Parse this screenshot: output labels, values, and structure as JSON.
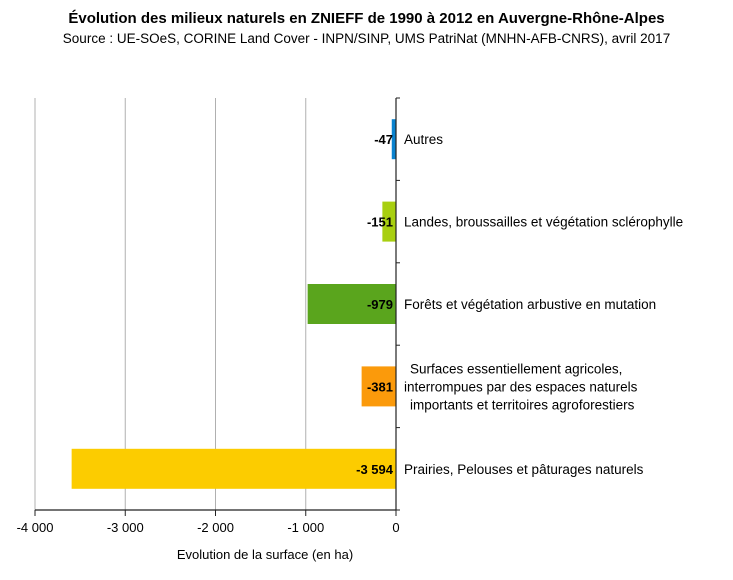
{
  "chart_data": {
    "type": "bar",
    "orientation": "horizontal",
    "title": "Évolution des milieux naturels en ZNIEFF de 1990 à 2012 en Auvergne-Rhône-Alpes",
    "subtitle": "Source : UE-SOeS, CORINE Land Cover - INPN/SINP, UMS PatriNat (MNHN-AFB-CNRS), avril 2017",
    "xlabel": "Evolution de la surface (en ha)",
    "xlim": [
      -4000,
      0
    ],
    "xticks": [
      -4000,
      -3000,
      -2000,
      -1000,
      0
    ],
    "xtick_labels": [
      "-4 000",
      "-3 000",
      "-2 000",
      "-1 000",
      "0"
    ],
    "grid": true,
    "categories": [
      {
        "label": [
          "Autres"
        ],
        "value": -47,
        "value_label": "-47",
        "color": "#0a83cf"
      },
      {
        "label": [
          "Landes, broussailles et végétation sclérophylle"
        ],
        "value": -151,
        "value_label": "-151",
        "color": "#a8cf10"
      },
      {
        "label": [
          "Forêts et végétation arbustive en mutation"
        ],
        "value": -979,
        "value_label": "-979",
        "color": "#5aa51d"
      },
      {
        "label": [
          "Surfaces essentiellement agricoles,",
          "interrompues par des espaces naturels",
          "importants et territoires agroforestiers"
        ],
        "value": -381,
        "value_label": "-381",
        "color": "#fb9a0b"
      },
      {
        "label": [
          "Prairies, Pelouses et pâturages naturels"
        ],
        "value": -3594,
        "value_label": "-3 594",
        "color": "#fccc00"
      }
    ]
  }
}
